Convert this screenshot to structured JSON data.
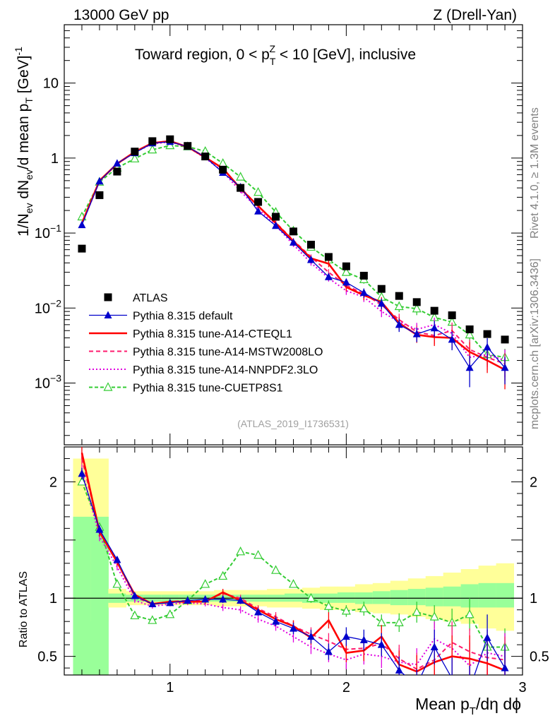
{
  "header": {
    "left": "13000 GeV pp",
    "right": "Z (Drell-Yan)"
  },
  "side": {
    "rivet": "Rivet 4.1.0, ≥ 1.3M events",
    "mcplots": "mcplots.cern.ch [arXiv:1306.3436]"
  },
  "colors": {
    "atlas": "#000000",
    "default": "#0000cc",
    "cteql1": "#ff0000",
    "mstw": "#ff1a6e",
    "nnpdf": "#e000e0",
    "cuetp8s1": "#33cc33",
    "band_inner": "#99ff99",
    "band_outer": "#ffff99"
  },
  "chart_data": [
    {
      "type": "line",
      "panel": "main",
      "title_prefix": "Toward region, 0 < p",
      "title_sup": "Z",
      "title_sub": "T",
      "title_suffix": " < 10 [GeV], inclusive",
      "ylabel_parts": [
        "1/N",
        "ev",
        " dN",
        "ev",
        "/d mean p",
        "T",
        " [GeV]",
        "-1"
      ],
      "yscale": "log",
      "ylim": [
        0.00015,
        60
      ],
      "xlim": [
        0.4,
        3.0
      ],
      "yticks": [
        {
          "v": 10,
          "label": "10",
          "sup": ""
        },
        {
          "v": 1,
          "label": "1",
          "sup": ""
        },
        {
          "v": 0.1,
          "label": "10",
          "sup": "−1"
        },
        {
          "v": 0.01,
          "label": "10",
          "sup": "−2"
        },
        {
          "v": 0.001,
          "label": "10",
          "sup": "−3"
        }
      ],
      "watermark": "(ATLAS_2019_I1736531)",
      "x": [
        0.5,
        0.6,
        0.7,
        0.8,
        0.9,
        1.0,
        1.1,
        1.2,
        1.3,
        1.4,
        1.5,
        1.6,
        1.7,
        1.8,
        1.9,
        2.0,
        2.1,
        2.2,
        2.3,
        2.4,
        2.5,
        2.6,
        2.7,
        2.8,
        2.9
      ],
      "series": [
        {
          "name": "ATLAS",
          "key": "atlas",
          "marker": "square",
          "values": [
            0.062,
            0.32,
            0.66,
            1.22,
            1.68,
            1.78,
            1.45,
            1.05,
            0.7,
            0.4,
            0.26,
            0.165,
            0.105,
            0.07,
            0.048,
            0.036,
            0.027,
            0.018,
            0.0145,
            0.012,
            0.0092,
            0.008,
            0.0052,
            0.0045,
            0.0038
          ]
        },
        {
          "name": "Pythia 8.315 default",
          "key": "default",
          "marker": "triangle",
          "dash": "",
          "values": [
            0.128,
            0.49,
            0.85,
            1.17,
            1.58,
            1.65,
            1.42,
            1.03,
            0.64,
            0.41,
            0.195,
            0.125,
            0.075,
            0.044,
            0.026,
            0.022,
            0.016,
            0.0115,
            0.006,
            0.0045,
            0.0054,
            0.0038,
            0.0016,
            0.003,
            0.0016
          ],
          "err": [
            0.03,
            0.03,
            0.03,
            0.03,
            0.03,
            0.03,
            0.03,
            0.04,
            0.04,
            0.05,
            0.05,
            0.06,
            0.07,
            0.08,
            0.1,
            0.12,
            0.14,
            0.16,
            0.2,
            0.22,
            0.24,
            0.28,
            0.45,
            0.32,
            0.4
          ]
        },
        {
          "name": "Pythia 8.315 tune-A14-CTEQL1",
          "key": "cteql1",
          "marker": "",
          "dash": "",
          "values": [
            0.135,
            0.5,
            0.84,
            1.21,
            1.59,
            1.68,
            1.41,
            1.02,
            0.73,
            0.39,
            0.23,
            0.135,
            0.078,
            0.046,
            0.039,
            0.019,
            0.0148,
            0.012,
            0.0063,
            0.0044,
            0.0041,
            0.004,
            0.0026,
            0.002,
            0.0015
          ],
          "err": [
            0.03,
            0.03,
            0.03,
            0.03,
            0.03,
            0.03,
            0.03,
            0.04,
            0.04,
            0.05,
            0.05,
            0.06,
            0.07,
            0.08,
            0.1,
            0.12,
            0.14,
            0.16,
            0.2,
            0.22,
            0.24,
            0.28,
            0.35,
            0.32,
            0.45
          ]
        },
        {
          "name": "Pythia 8.315 tune-A14-MSTW2008LO",
          "key": "mstw",
          "marker": "",
          "dash": "6,4",
          "values": [
            0.133,
            0.5,
            0.83,
            1.2,
            1.58,
            1.7,
            1.4,
            1.03,
            0.72,
            0.4,
            0.23,
            0.138,
            0.08,
            0.048,
            0.03,
            0.02,
            0.0155,
            0.011,
            0.007,
            0.0048,
            0.0043,
            0.005,
            0.0028,
            0.0022,
            0.0018
          ],
          "err": [
            0.03,
            0.03,
            0.03,
            0.03,
            0.03,
            0.03,
            0.03,
            0.04,
            0.04,
            0.05,
            0.05,
            0.06,
            0.07,
            0.08,
            0.1,
            0.12,
            0.14,
            0.16,
            0.2,
            0.22,
            0.24,
            0.28,
            0.35,
            0.32,
            0.4
          ]
        },
        {
          "name": "Pythia 8.315 tune-A14-NNPDF2.3LO",
          "key": "nnpdf",
          "marker": "",
          "dash": "2,3",
          "values": [
            0.13,
            0.49,
            0.84,
            1.19,
            1.55,
            1.64,
            1.4,
            1.0,
            0.66,
            0.36,
            0.21,
            0.126,
            0.07,
            0.04,
            0.025,
            0.017,
            0.014,
            0.009,
            0.0065,
            0.0052,
            0.006,
            0.0046,
            0.0022,
            0.0024,
            0.002
          ],
          "err": [
            0.03,
            0.03,
            0.03,
            0.03,
            0.03,
            0.03,
            0.03,
            0.04,
            0.04,
            0.05,
            0.05,
            0.06,
            0.07,
            0.08,
            0.1,
            0.12,
            0.14,
            0.16,
            0.2,
            0.22,
            0.24,
            0.28,
            0.35,
            0.32,
            0.4
          ]
        },
        {
          "name": "Pythia 8.315 tune-CUETP8S1",
          "key": "cuetp8s1",
          "marker": "open-triangle",
          "dash": "5,3",
          "values": [
            0.165,
            0.48,
            0.74,
            0.98,
            1.29,
            1.47,
            1.42,
            1.23,
            0.85,
            0.56,
            0.35,
            0.19,
            0.107,
            0.065,
            0.044,
            0.03,
            0.024,
            0.014,
            0.0105,
            0.0098,
            0.0075,
            0.0065,
            0.0044,
            0.0024,
            0.0022
          ],
          "err": [
            0.02,
            0.02,
            0.02,
            0.02,
            0.02,
            0.02,
            0.02,
            0.03,
            0.03,
            0.04,
            0.04,
            0.05,
            0.06,
            0.07,
            0.08,
            0.1,
            0.12,
            0.14,
            0.16,
            0.18,
            0.2,
            0.22,
            0.26,
            0.28,
            0.3
          ]
        }
      ]
    },
    {
      "type": "line",
      "panel": "ratio",
      "ylabel": "Ratio to ATLAS",
      "ylim": [
        0.34,
        2.3
      ],
      "xlim": [
        0.4,
        3.0
      ],
      "yticks": [
        0.5,
        1,
        2
      ],
      "xticks": [
        1,
        2,
        3
      ],
      "xlabel_parts": [
        "Mean p",
        "T",
        "/dη dϕ"
      ],
      "bands": {
        "edges": [
          0.45,
          0.55,
          0.65,
          0.75,
          0.85,
          0.95,
          1.05,
          1.15,
          1.25,
          1.35,
          1.45,
          1.55,
          1.65,
          1.75,
          1.85,
          1.95,
          2.05,
          2.15,
          2.25,
          2.35,
          2.45,
          2.55,
          2.65,
          2.75,
          2.85,
          2.95
        ],
        "inner_lo": [
          0.3,
          0.3,
          0.96,
          0.97,
          0.97,
          0.97,
          0.97,
          0.97,
          0.97,
          0.97,
          0.97,
          0.97,
          0.97,
          0.96,
          0.96,
          0.96,
          0.95,
          0.95,
          0.94,
          0.94,
          0.93,
          0.93,
          0.92,
          0.92,
          0.92
        ],
        "inner_hi": [
          1.7,
          1.7,
          1.04,
          1.03,
          1.03,
          1.03,
          1.03,
          1.03,
          1.03,
          1.03,
          1.03,
          1.03,
          1.04,
          1.04,
          1.04,
          1.05,
          1.05,
          1.06,
          1.07,
          1.08,
          1.09,
          1.1,
          1.12,
          1.13,
          1.13
        ],
        "outer_lo": [
          0.8,
          0.8,
          0.92,
          0.94,
          0.94,
          0.94,
          0.94,
          0.94,
          0.93,
          0.93,
          0.93,
          0.92,
          0.92,
          0.91,
          0.9,
          0.9,
          0.88,
          0.87,
          0.86,
          0.84,
          0.82,
          0.8,
          0.78,
          0.74,
          0.72
        ],
        "outer_hi": [
          2.2,
          2.2,
          1.08,
          1.06,
          1.06,
          1.06,
          1.06,
          1.06,
          1.07,
          1.07,
          1.07,
          1.08,
          1.08,
          1.09,
          1.1,
          1.1,
          1.12,
          1.13,
          1.15,
          1.17,
          1.19,
          1.22,
          1.25,
          1.28,
          1.3
        ]
      },
      "x": [
        0.5,
        0.6,
        0.7,
        0.8,
        0.9,
        1.0,
        1.1,
        1.2,
        1.3,
        1.4,
        1.5,
        1.6,
        1.7,
        1.8,
        1.9,
        2.0,
        2.1,
        2.2,
        2.3,
        2.4,
        2.5,
        2.6,
        2.7,
        2.8,
        2.9
      ],
      "series": [
        {
          "key": "default",
          "marker": "triangle",
          "dash": "",
          "values": [
            2.07,
            1.59,
            1.33,
            1.02,
            0.95,
            0.96,
            0.98,
            0.99,
            0.99,
            0.98,
            0.88,
            0.8,
            0.74,
            0.67,
            0.54,
            0.67,
            0.64,
            0.6,
            0.38,
            0.25,
            0.58,
            0.31,
            0.22,
            0.66,
            0.4
          ],
          "err": [
            0.05,
            0.04,
            0.03,
            0.02,
            0.02,
            0.02,
            0.02,
            0.02,
            0.03,
            0.03,
            0.03,
            0.04,
            0.05,
            0.06,
            0.07,
            0.08,
            0.09,
            0.1,
            0.12,
            0.14,
            0.15,
            0.18,
            0.2,
            0.2,
            0.2
          ]
        },
        {
          "key": "cteql1",
          "marker": "",
          "dash": "",
          "values": [
            2.25,
            1.57,
            1.31,
            1.03,
            0.95,
            0.97,
            0.97,
            0.97,
            1.05,
            0.98,
            0.9,
            0.82,
            0.76,
            0.66,
            0.81,
            0.53,
            0.55,
            0.67,
            0.43,
            0.37,
            0.45,
            0.5,
            0.48,
            0.44,
            0.38
          ],
          "err": [
            0.05,
            0.04,
            0.03,
            0.02,
            0.02,
            0.02,
            0.02,
            0.02,
            0.03,
            0.03,
            0.03,
            0.04,
            0.05,
            0.06,
            0.07,
            0.08,
            0.09,
            0.1,
            0.12,
            0.14,
            0.15,
            0.18,
            0.2,
            0.2,
            0.2
          ]
        },
        {
          "key": "mstw",
          "marker": "",
          "dash": "6,4",
          "values": [
            2.2,
            1.58,
            1.31,
            1.01,
            0.95,
            0.97,
            0.98,
            0.98,
            1.04,
            1.0,
            0.91,
            0.84,
            0.76,
            0.69,
            0.63,
            0.56,
            0.57,
            0.61,
            0.48,
            0.39,
            0.47,
            0.62,
            0.54,
            0.49,
            0.47
          ],
          "err": [
            0.05,
            0.04,
            0.03,
            0.02,
            0.02,
            0.02,
            0.02,
            0.02,
            0.03,
            0.03,
            0.03,
            0.04,
            0.05,
            0.06,
            0.07,
            0.08,
            0.09,
            0.1,
            0.12,
            0.14,
            0.15,
            0.18,
            0.2,
            0.2,
            0.2
          ]
        },
        {
          "key": "nnpdf",
          "marker": "",
          "dash": "2,3",
          "values": [
            2.1,
            1.53,
            1.27,
            0.98,
            0.93,
            0.95,
            0.96,
            0.95,
            0.92,
            0.9,
            0.82,
            0.76,
            0.67,
            0.58,
            0.52,
            0.47,
            0.52,
            0.5,
            0.45,
            0.43,
            0.65,
            0.57,
            0.42,
            0.53,
            0.5
          ],
          "err": [
            0.05,
            0.04,
            0.03,
            0.02,
            0.02,
            0.02,
            0.02,
            0.02,
            0.03,
            0.03,
            0.03,
            0.04,
            0.05,
            0.06,
            0.07,
            0.08,
            0.09,
            0.1,
            0.12,
            0.14,
            0.15,
            0.18,
            0.2,
            0.2,
            0.2
          ]
        },
        {
          "key": "cuetp8s1",
          "marker": "open-triangle",
          "dash": "5,3",
          "values": [
            2.0,
            1.61,
            1.12,
            0.85,
            0.81,
            0.86,
            0.98,
            1.12,
            1.19,
            1.4,
            1.37,
            1.24,
            1.12,
            1.0,
            0.93,
            0.89,
            0.91,
            0.79,
            0.79,
            0.88,
            0.84,
            0.79,
            0.86,
            0.58,
            0.58
          ],
          "err": [
            0.03,
            0.02,
            0.02,
            0.02,
            0.02,
            0.02,
            0.02,
            0.02,
            0.02,
            0.02,
            0.02,
            0.03,
            0.03,
            0.04,
            0.05,
            0.05,
            0.06,
            0.07,
            0.08,
            0.09,
            0.1,
            0.12,
            0.14,
            0.15,
            0.16
          ]
        }
      ]
    }
  ]
}
